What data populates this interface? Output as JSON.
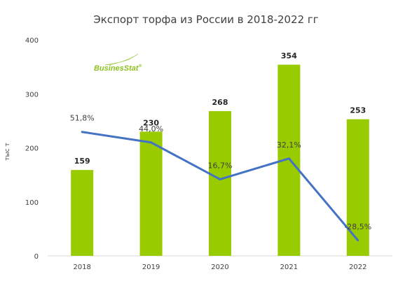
{
  "chart_data": {
    "type": "bar",
    "title": "Экспорт торфа из России в 2018-2022 гг",
    "ylabel": "тыс т",
    "xlabel": "",
    "categories": [
      "2018",
      "2019",
      "2020",
      "2021",
      "2022"
    ],
    "ylim": [
      0,
      400
    ],
    "yticks": [
      0,
      100,
      200,
      300,
      400
    ],
    "grid": false,
    "series": [
      {
        "values": [
          159,
          230,
          268,
          354,
          253
        ],
        "labels": [
          "159",
          "230",
          "268",
          "354",
          "253"
        ],
        "color": "#99cc00"
      },
      {
        "type": "line",
        "axis": "secondary-hidden",
        "values": [
          51.8,
          44.0,
          16.7,
          32.1,
          -28.5
        ],
        "labels": [
          "51,8%",
          "44,0%",
          "16,7%",
          "32,1%",
          "-28,5%"
        ],
        "color": "#4472c4"
      }
    ]
  },
  "logo": {
    "text": "BusinesStat",
    "mark": "®",
    "color": "#8dc21f"
  }
}
